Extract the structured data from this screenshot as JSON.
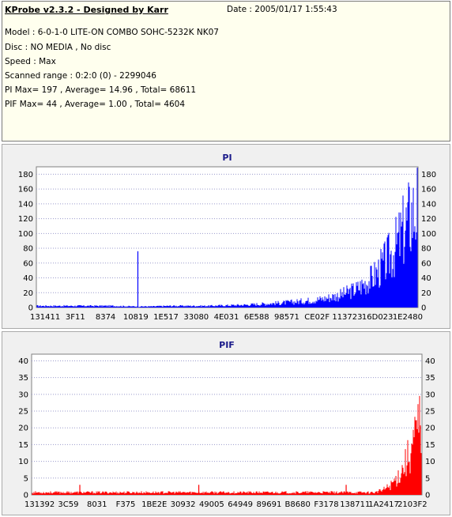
{
  "info": {
    "title": "KProbe v2.3.2 - Designed by Karr",
    "date": "Date : 2005/01/17 1:55:43",
    "lines": [
      "Model : 6-0-1-0 LITE-ON COMBO SOHC-5232K NK07",
      "Disc : NO MEDIA , No disc",
      "Speed : Max",
      "Scanned range : 0:2:0 (0) - 2299046",
      "PI Max= 197 , Average= 14.96 , Total= 68611",
      "PIF Max= 44 , Average= 1.00 , Total= 4604"
    ]
  },
  "chart_data": [
    {
      "type": "bar",
      "title": "PI",
      "color": "#0000ff",
      "ylim": [
        0,
        190
      ],
      "yticks": [
        0,
        20,
        40,
        60,
        80,
        100,
        120,
        140,
        160,
        180
      ],
      "xtick_labels": [
        "131411",
        "3F11",
        "8374",
        "10819",
        "1E517",
        "33080",
        "4E031",
        "6E588",
        "98571",
        "CE02F",
        "113723",
        "16D023",
        "1E2480"
      ],
      "grid": true,
      "x_extent": [
        0,
        100
      ],
      "envelope": [
        [
          0,
          3
        ],
        [
          10,
          3
        ],
        [
          20,
          3
        ],
        [
          25,
          2
        ],
        [
          30,
          2
        ],
        [
          35,
          3
        ],
        [
          40,
          3
        ],
        [
          45,
          3
        ],
        [
          50,
          4
        ],
        [
          55,
          5
        ],
        [
          60,
          7
        ],
        [
          65,
          9
        ],
        [
          70,
          12
        ],
        [
          75,
          16
        ],
        [
          80,
          24
        ],
        [
          84,
          35
        ],
        [
          88,
          55
        ],
        [
          91,
          80
        ],
        [
          94,
          110
        ],
        [
          96,
          140
        ],
        [
          98,
          170
        ],
        [
          100,
          190
        ]
      ],
      "spikes": [
        {
          "x": 26.5,
          "value": 76
        }
      ]
    },
    {
      "type": "bar",
      "title": "PIF",
      "color": "#ff0000",
      "ylim": [
        0,
        42
      ],
      "yticks": [
        0,
        5,
        10,
        15,
        20,
        25,
        30,
        35,
        40
      ],
      "xtick_labels": [
        "131392",
        "3C59",
        "8031",
        "F375",
        "1BE2E",
        "30932",
        "49005",
        "64949",
        "89691",
        "B8680",
        "F3178",
        "138711",
        "1A2417",
        "2103F2"
      ],
      "grid": true,
      "x_extent": [
        0,
        100
      ],
      "envelope": [
        [
          0,
          1
        ],
        [
          20,
          1
        ],
        [
          40,
          1
        ],
        [
          60,
          1
        ],
        [
          80,
          1
        ],
        [
          88,
          1
        ],
        [
          90,
          2
        ],
        [
          92,
          4
        ],
        [
          94,
          8
        ],
        [
          96,
          14
        ],
        [
          98,
          22
        ],
        [
          100,
          33
        ]
      ],
      "spikes": [
        {
          "x": 12.2,
          "value": 3
        },
        {
          "x": 42.8,
          "value": 3
        },
        {
          "x": 80.7,
          "value": 3
        }
      ]
    }
  ]
}
